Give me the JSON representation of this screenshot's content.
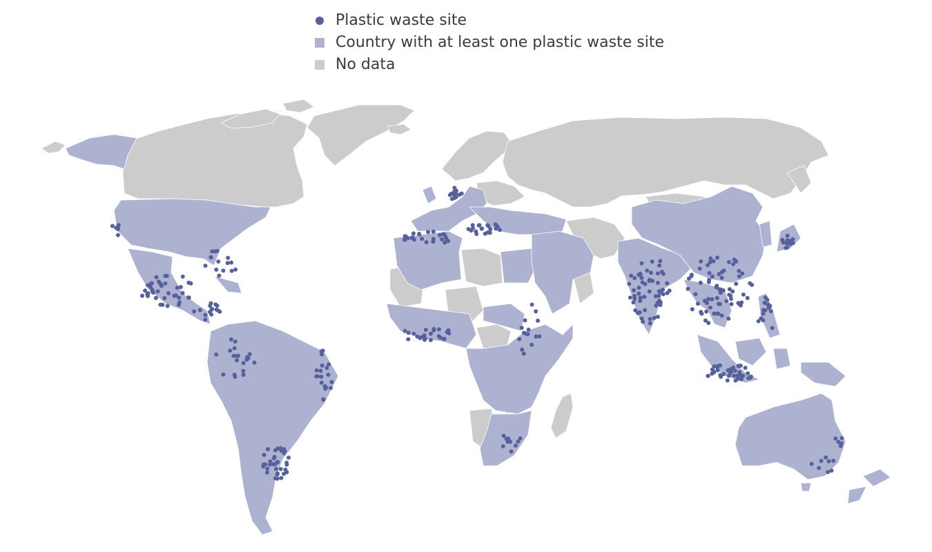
{
  "legend": {
    "items": [
      {
        "label": "Plastic waste site",
        "symbol": "dot",
        "color": "#56609b"
      },
      {
        "label": "Country with at least one plastic waste site",
        "symbol": "square",
        "color": "#aeb2d1"
      },
      {
        "label": "No data",
        "symbol": "square",
        "color": "#cccccc"
      }
    ]
  },
  "map": {
    "colors": {
      "site_dot": "#56609b",
      "country_with_site": "#aeb2d1",
      "no_data": "#cccccc",
      "border": "#ffffff"
    }
  }
}
